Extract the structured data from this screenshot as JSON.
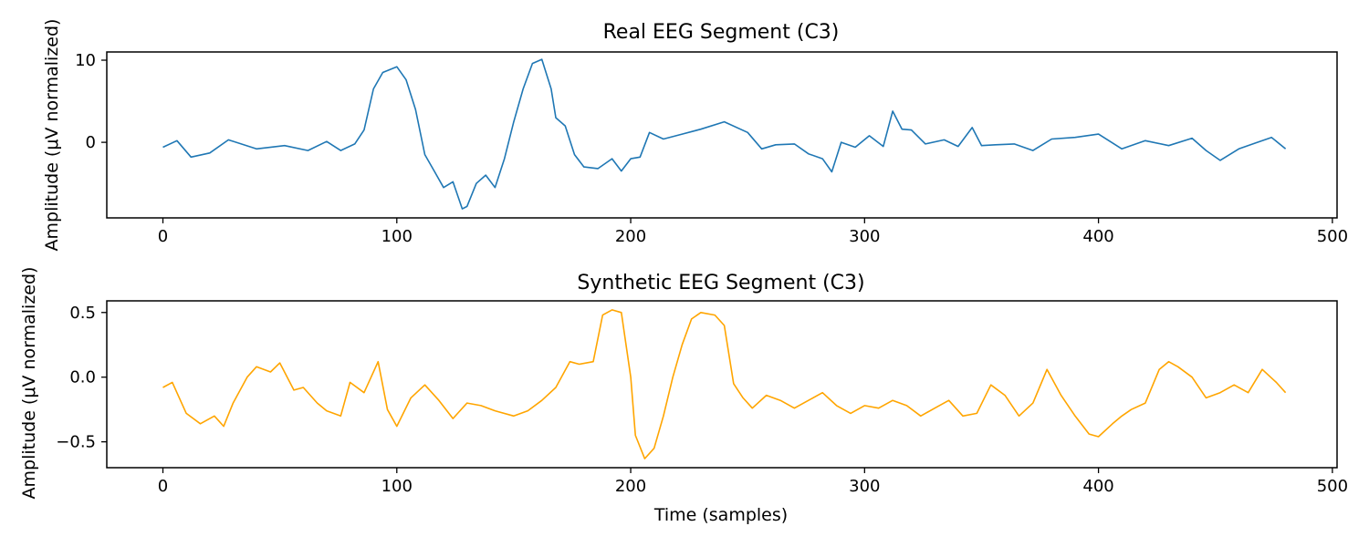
{
  "chart_data": [
    {
      "type": "line",
      "title": "Real EEG Segment (C3)",
      "xlabel": "",
      "ylabel": "Amplitude (μV normalized)",
      "xlim": [
        -24,
        502
      ],
      "ylim": [
        -9.2,
        11.0
      ],
      "xticks": [
        0,
        100,
        200,
        300,
        400,
        500
      ],
      "yticks": [
        0,
        10
      ],
      "grid": false,
      "color": "#1f77b4",
      "series": [
        {
          "x": [
            0,
            6,
            12,
            20,
            28,
            40,
            52,
            62,
            70,
            76,
            82,
            86,
            90,
            94,
            100,
            104,
            108,
            112,
            116,
            120,
            124,
            128,
            130,
            134,
            138,
            142,
            146,
            150,
            154,
            158,
            162,
            166,
            168,
            172,
            176,
            180,
            186,
            192,
            196,
            200,
            204,
            208,
            214,
            222,
            230,
            240,
            250,
            256,
            262,
            270,
            276,
            282,
            286,
            290,
            296,
            302,
            308,
            312,
            316,
            320,
            326,
            334,
            340,
            346,
            350,
            356,
            364,
            372,
            380,
            390,
            400,
            410,
            420,
            430,
            440,
            446,
            452,
            460,
            466,
            474,
            480
          ],
          "values": [
            -0.6,
            0.2,
            -1.8,
            -1.3,
            0.3,
            -0.8,
            -0.4,
            -1.0,
            0.1,
            -1.0,
            -0.2,
            1.5,
            6.5,
            8.5,
            9.2,
            7.6,
            4.0,
            -1.5,
            -3.5,
            -5.5,
            -4.8,
            -8.1,
            -7.8,
            -5.0,
            -4.0,
            -5.5,
            -2.0,
            2.5,
            6.5,
            9.6,
            10.1,
            6.5,
            3.0,
            2.0,
            -1.5,
            -3.0,
            -3.2,
            -2.0,
            -3.5,
            -2.0,
            -1.8,
            1.2,
            0.4,
            1.0,
            1.6,
            2.5,
            1.2,
            -0.8,
            -0.3,
            -0.2,
            -1.4,
            -2.0,
            -3.6,
            0.0,
            -0.6,
            0.8,
            -0.5,
            3.8,
            1.6,
            1.5,
            -0.2,
            0.3,
            -0.5,
            1.8,
            -0.4,
            -0.3,
            -0.2,
            -1.0,
            0.4,
            0.6,
            1.0,
            -0.8,
            0.2,
            -0.4,
            0.5,
            -1.0,
            -2.2,
            -0.8,
            -0.2,
            0.6,
            -0.8
          ]
        }
      ]
    },
    {
      "type": "line",
      "title": "Synthetic EEG Segment (C3)",
      "xlabel": "Time (samples)",
      "ylabel": "Amplitude (μV normalized)",
      "xlim": [
        -24,
        502
      ],
      "ylim": [
        -0.7,
        0.59
      ],
      "xticks": [
        0,
        100,
        200,
        300,
        400,
        500
      ],
      "yticks": [
        -0.5,
        0.0,
        0.5
      ],
      "grid": false,
      "color": "#ffa500",
      "series": [
        {
          "x": [
            0,
            4,
            10,
            16,
            22,
            26,
            30,
            36,
            40,
            46,
            50,
            56,
            60,
            66,
            70,
            76,
            80,
            86,
            92,
            96,
            100,
            106,
            112,
            118,
            124,
            130,
            136,
            142,
            150,
            156,
            162,
            168,
            174,
            178,
            184,
            188,
            192,
            196,
            200,
            202,
            206,
            210,
            214,
            218,
            222,
            226,
            230,
            236,
            240,
            244,
            248,
            252,
            258,
            264,
            270,
            276,
            282,
            288,
            294,
            300,
            306,
            312,
            318,
            324,
            330,
            336,
            342,
            348,
            354,
            360,
            366,
            372,
            378,
            384,
            390,
            396,
            400,
            406,
            410,
            414,
            420,
            426,
            430,
            434,
            440,
            446,
            452,
            458,
            464,
            470,
            476,
            480
          ],
          "values": [
            -0.08,
            -0.04,
            -0.28,
            -0.36,
            -0.3,
            -0.38,
            -0.2,
            0.0,
            0.08,
            0.04,
            0.11,
            -0.1,
            -0.08,
            -0.2,
            -0.26,
            -0.3,
            -0.04,
            -0.12,
            0.12,
            -0.25,
            -0.38,
            -0.16,
            -0.06,
            -0.18,
            -0.32,
            -0.2,
            -0.22,
            -0.26,
            -0.3,
            -0.26,
            -0.18,
            -0.08,
            0.12,
            0.1,
            0.12,
            0.48,
            0.52,
            0.5,
            0.0,
            -0.45,
            -0.63,
            -0.55,
            -0.3,
            0.0,
            0.25,
            0.45,
            0.5,
            0.48,
            0.4,
            -0.05,
            -0.16,
            -0.24,
            -0.14,
            -0.18,
            -0.24,
            -0.18,
            -0.12,
            -0.22,
            -0.28,
            -0.22,
            -0.24,
            -0.18,
            -0.22,
            -0.3,
            -0.24,
            -0.18,
            -0.3,
            -0.28,
            -0.06,
            -0.14,
            -0.3,
            -0.2,
            0.06,
            -0.14,
            -0.3,
            -0.44,
            -0.46,
            -0.36,
            -0.3,
            -0.25,
            -0.2,
            0.06,
            0.12,
            0.08,
            0.0,
            -0.16,
            -0.12,
            -0.06,
            -0.12,
            0.06,
            -0.04,
            -0.12
          ]
        }
      ]
    }
  ]
}
